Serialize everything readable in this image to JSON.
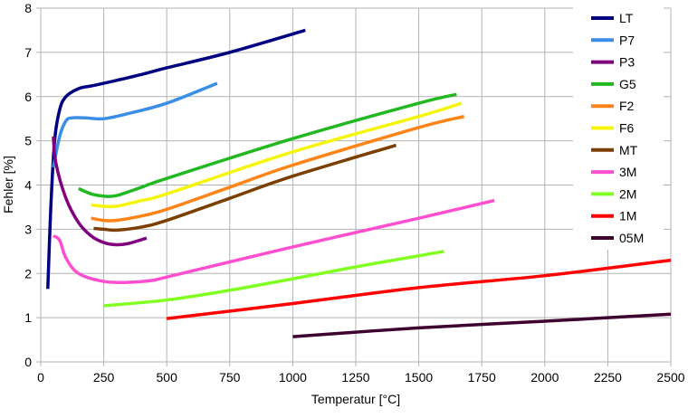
{
  "chart_data": {
    "type": "line",
    "title": "",
    "xlabel": "Temperatur [°C]",
    "ylabel": "Fehler [%]",
    "xlim": [
      0,
      2500
    ],
    "ylim": [
      0,
      8
    ],
    "xticks": [
      "0",
      "250",
      "500",
      "750",
      "1000",
      "1250",
      "1500",
      "1750",
      "2000",
      "2250",
      "2500"
    ],
    "yticks": [
      "0",
      "1",
      "2",
      "3",
      "4",
      "5",
      "6",
      "7",
      "8"
    ],
    "grid": true,
    "legend_position": "right",
    "series": [
      {
        "name": "LT",
        "color": "#000080",
        "points": [
          [
            28,
            1.65
          ],
          [
            40,
            3.5
          ],
          [
            55,
            5.0
          ],
          [
            75,
            5.7
          ],
          [
            100,
            6.0
          ],
          [
            150,
            6.18
          ],
          [
            200,
            6.24
          ],
          [
            250,
            6.3
          ],
          [
            400,
            6.5
          ],
          [
            500,
            6.65
          ],
          [
            750,
            7.0
          ],
          [
            1050,
            7.5
          ]
        ]
      },
      {
        "name": "P7",
        "color": "#3a8ee6",
        "points": [
          [
            50,
            4.4
          ],
          [
            75,
            5.1
          ],
          [
            100,
            5.45
          ],
          [
            125,
            5.52
          ],
          [
            175,
            5.52
          ],
          [
            250,
            5.5
          ],
          [
            350,
            5.62
          ],
          [
            500,
            5.85
          ],
          [
            700,
            6.3
          ]
        ]
      },
      {
        "name": "P3",
        "color": "#800080",
        "points": [
          [
            50,
            5.1
          ],
          [
            60,
            4.5
          ],
          [
            100,
            3.7
          ],
          [
            150,
            3.15
          ],
          [
            200,
            2.85
          ],
          [
            250,
            2.7
          ],
          [
            300,
            2.65
          ],
          [
            350,
            2.68
          ],
          [
            420,
            2.8
          ]
        ]
      },
      {
        "name": "G5",
        "color": "#22b822",
        "points": [
          [
            150,
            3.92
          ],
          [
            200,
            3.8
          ],
          [
            250,
            3.75
          ],
          [
            300,
            3.76
          ],
          [
            400,
            3.95
          ],
          [
            500,
            4.15
          ],
          [
            1000,
            5.05
          ],
          [
            1500,
            5.85
          ],
          [
            1650,
            6.05
          ]
        ]
      },
      {
        "name": "F2",
        "color": "#ff8418",
        "points": [
          [
            200,
            3.25
          ],
          [
            250,
            3.2
          ],
          [
            300,
            3.2
          ],
          [
            400,
            3.3
          ],
          [
            500,
            3.45
          ],
          [
            750,
            3.95
          ],
          [
            1000,
            4.45
          ],
          [
            1500,
            5.3
          ],
          [
            1680,
            5.55
          ]
        ]
      },
      {
        "name": "F6",
        "color": "#f5f50a",
        "points": [
          [
            200,
            3.55
          ],
          [
            250,
            3.52
          ],
          [
            300,
            3.52
          ],
          [
            400,
            3.65
          ],
          [
            500,
            3.8
          ],
          [
            1000,
            4.75
          ],
          [
            1500,
            5.55
          ],
          [
            1670,
            5.85
          ]
        ]
      },
      {
        "name": "MT",
        "color": "#7b3f00",
        "points": [
          [
            210,
            3.02
          ],
          [
            250,
            3.0
          ],
          [
            300,
            2.98
          ],
          [
            400,
            3.05
          ],
          [
            500,
            3.2
          ],
          [
            750,
            3.7
          ],
          [
            1000,
            4.2
          ],
          [
            1410,
            4.9
          ]
        ]
      },
      {
        "name": "3M",
        "color": "#ff4fd0",
        "points": [
          [
            50,
            2.85
          ],
          [
            75,
            2.75
          ],
          [
            100,
            2.35
          ],
          [
            150,
            2.0
          ],
          [
            250,
            1.82
          ],
          [
            350,
            1.8
          ],
          [
            450,
            1.85
          ],
          [
            500,
            1.92
          ],
          [
            1000,
            2.6
          ],
          [
            1500,
            3.25
          ],
          [
            1800,
            3.65
          ]
        ]
      },
      {
        "name": "2M",
        "color": "#80ff20",
        "points": [
          [
            250,
            1.27
          ],
          [
            500,
            1.4
          ],
          [
            750,
            1.62
          ],
          [
            1000,
            1.88
          ],
          [
            1250,
            2.15
          ],
          [
            1500,
            2.4
          ],
          [
            1600,
            2.5
          ]
        ]
      },
      {
        "name": "1M",
        "color": "#ff0000",
        "points": [
          [
            500,
            0.98
          ],
          [
            1000,
            1.32
          ],
          [
            1500,
            1.68
          ],
          [
            2000,
            1.95
          ],
          [
            2500,
            2.3
          ]
        ]
      },
      {
        "name": "05M",
        "color": "#3d0030",
        "points": [
          [
            1000,
            0.57
          ],
          [
            1500,
            0.77
          ],
          [
            2000,
            0.92
          ],
          [
            2500,
            1.08
          ]
        ]
      }
    ]
  }
}
